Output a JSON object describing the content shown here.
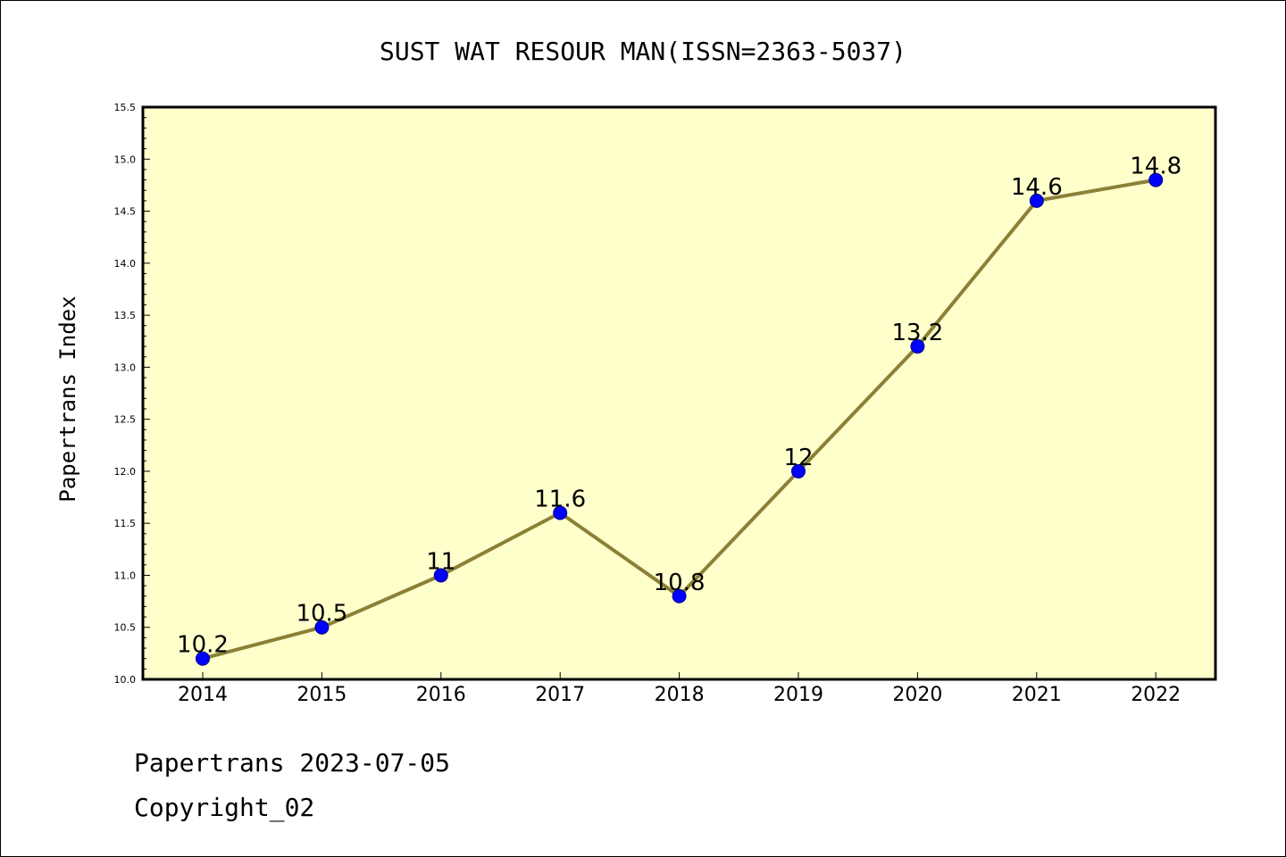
{
  "chart_data": {
    "type": "line",
    "title": "SUST WAT RESOUR MAN(ISSN=2363-5037)",
    "ylabel": "Papertrans Index",
    "xlabel": "",
    "categories": [
      "2014",
      "2015",
      "2016",
      "2017",
      "2018",
      "2019",
      "2020",
      "2021",
      "2022"
    ],
    "values": [
      10.2,
      10.5,
      11,
      11.6,
      10.8,
      12,
      13.2,
      14.6,
      14.8
    ],
    "data_labels": [
      "10.2",
      "10.5",
      "11",
      "11.6",
      "10.8",
      "12",
      "13.2",
      "14.6",
      "14.8"
    ],
    "ylim": [
      10.0,
      15.5
    ],
    "yticks": [
      "10.0",
      "10.5",
      "11.0",
      "11.5",
      "12.0",
      "12.5",
      "13.0",
      "13.5",
      "14.0",
      "14.5",
      "15.0",
      "15.5"
    ],
    "grid": false,
    "colors": {
      "plot_background": "#ffffcc",
      "line": "#8b8036",
      "marker": "#0000ff"
    }
  },
  "footer": {
    "line1": "Papertrans 2023-07-05",
    "line2": "Copyright_02"
  }
}
